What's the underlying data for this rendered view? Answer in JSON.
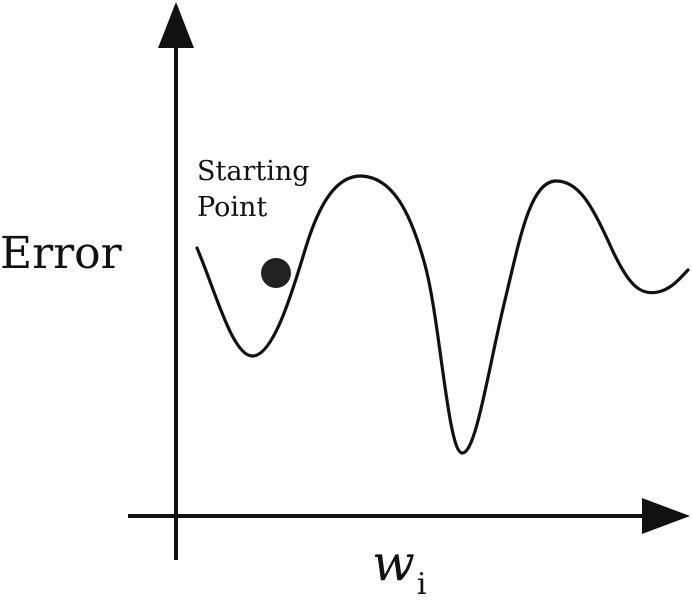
{
  "diagram": {
    "y_axis_label": "Error",
    "x_axis_label": {
      "main": "w",
      "subscript": "i"
    },
    "annotation": {
      "line1": "Starting",
      "line2": "Point"
    },
    "colors": {
      "ink": "#111111",
      "background": "#ffffff"
    }
  }
}
